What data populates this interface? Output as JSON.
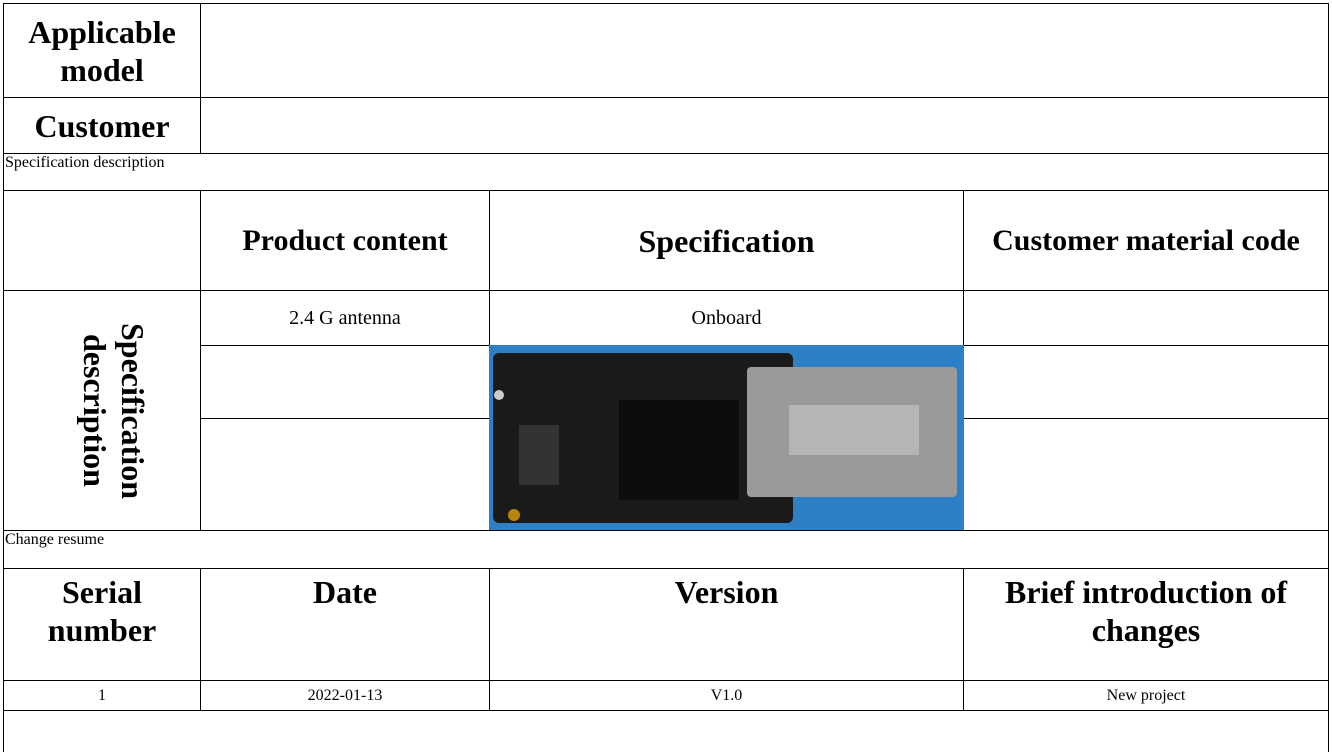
{
  "header": {
    "applicable_model_label": "Applicable model",
    "customer_label": "Customer"
  },
  "specification": {
    "section_label": "Specification description",
    "headers": [
      "Product content",
      "Specification",
      "Customer material code"
    ],
    "row_label": "Specification description",
    "rows": [
      [
        "2.4 G antenna",
        "Onboard"
      ]
    ]
  },
  "change_resume": {
    "section_label": "Change resume",
    "headers": [
      "Serial number",
      "Date",
      "Version",
      "Brief introduction of changes"
    ],
    "rows": [
      [
        "1",
        "2022-01-13",
        "V1.0",
        "New project"
      ]
    ]
  }
}
